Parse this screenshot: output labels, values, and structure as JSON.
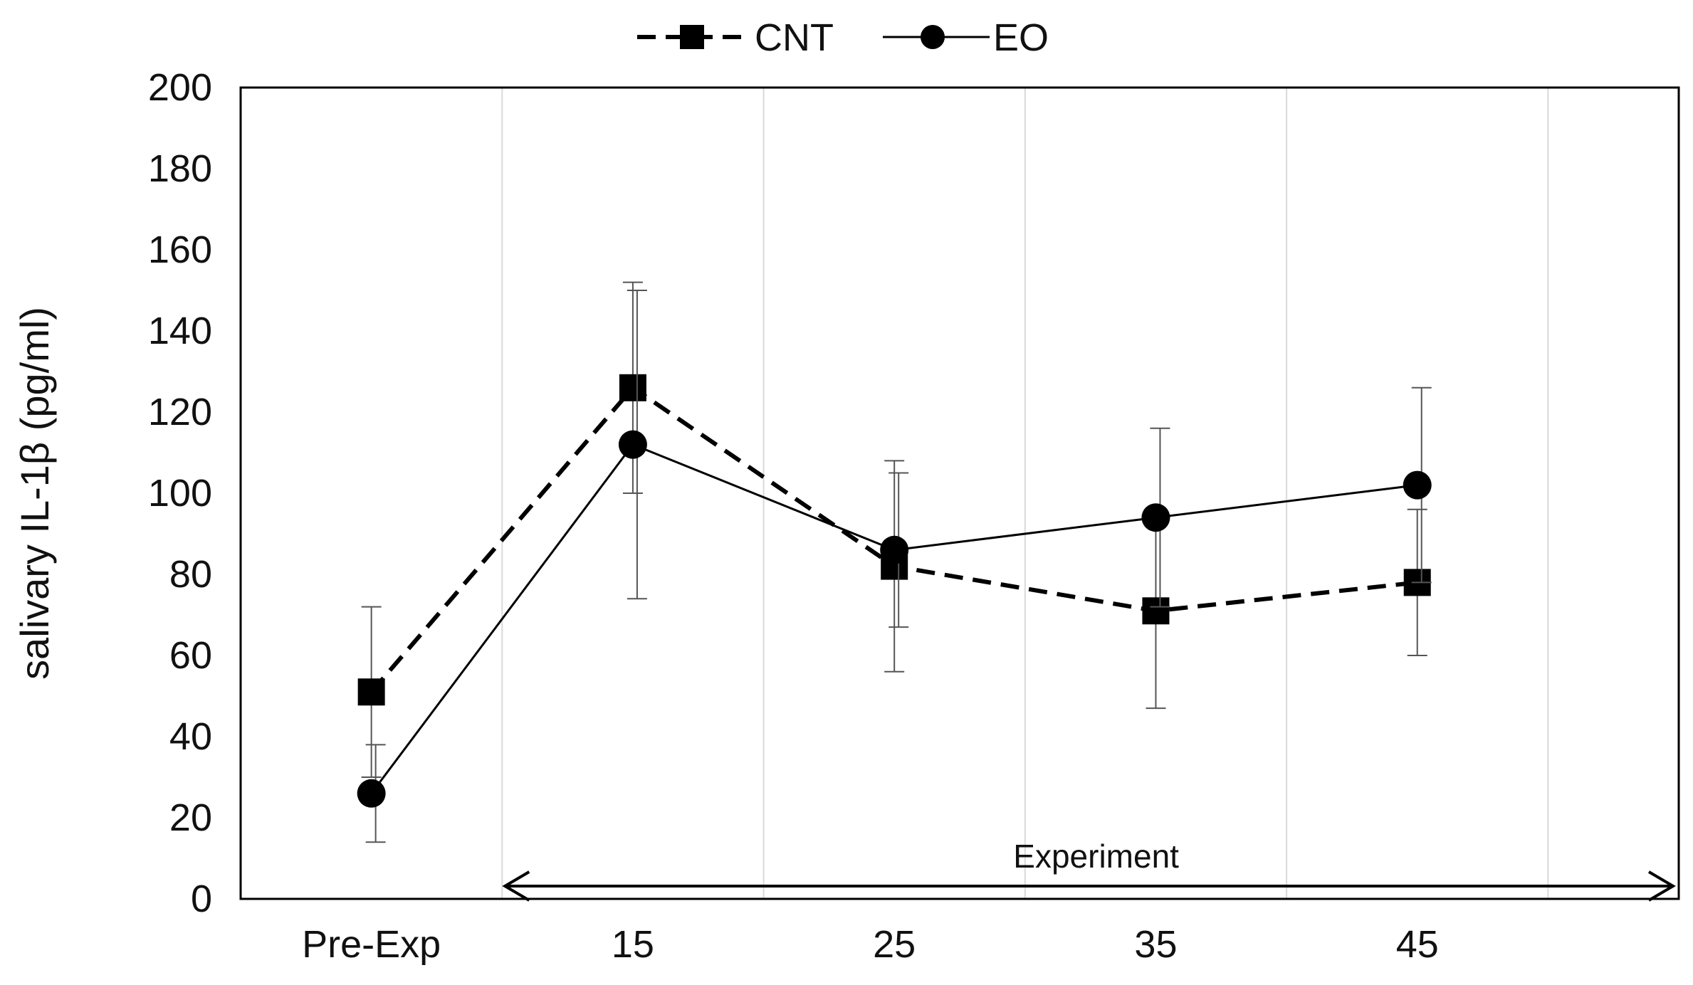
{
  "chart_data": {
    "type": "line",
    "title": "",
    "xlabel": "",
    "ylabel": "salivary IL-1β (pg/ml)",
    "categories": [
      "Pre-Exp",
      "15",
      "25",
      "35",
      "45"
    ],
    "ylim": [
      0,
      200
    ],
    "ytick_step": 20,
    "ytick_labels": [
      "0",
      "20",
      "40",
      "60",
      "80",
      "100",
      "120",
      "140",
      "160",
      "180",
      "200"
    ],
    "grid": "vertical",
    "legend": "top-center",
    "series": [
      {
        "name": "CNT",
        "style": "dashed",
        "marker": "square",
        "values": [
          51,
          126,
          82,
          71,
          78
        ],
        "error": [
          21,
          26,
          26,
          24,
          18
        ]
      },
      {
        "name": "EO",
        "style": "solid",
        "marker": "circle",
        "values": [
          26,
          112,
          86,
          94,
          102
        ],
        "error": [
          12,
          38,
          19,
          22,
          24
        ]
      }
    ],
    "annotation": {
      "text": "Experiment",
      "from_category_index": 0.5,
      "to_category_index": 5.0
    },
    "colors": {
      "line": "#000000",
      "grid": "#d9d9d9",
      "error": "#555555",
      "axis": "#000000"
    }
  }
}
